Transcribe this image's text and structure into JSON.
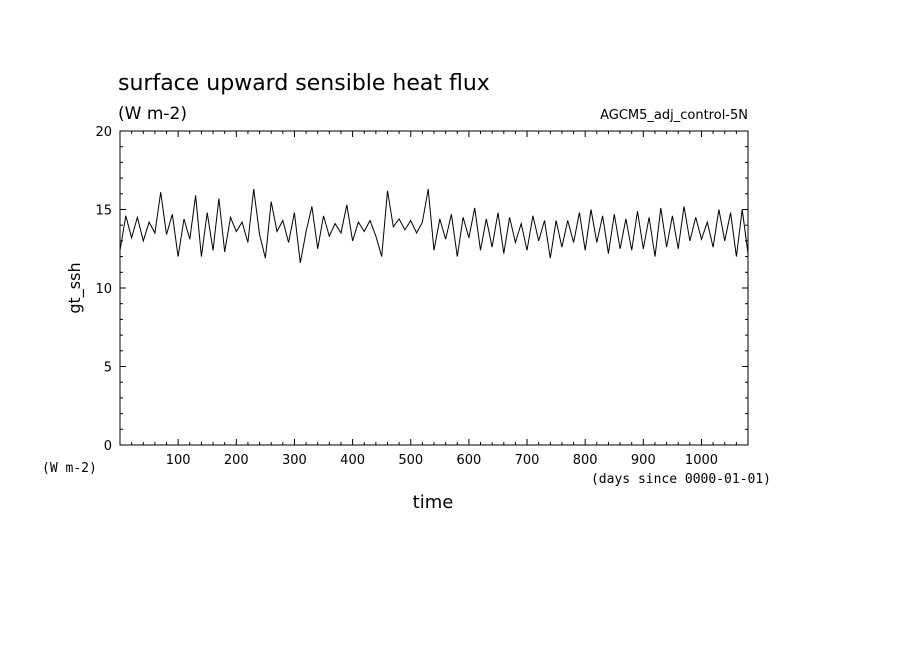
{
  "chart_data": {
    "type": "line",
    "title": "surface upward sensible heat flux",
    "units_label": "(W m-2)",
    "dataset_label": "AGCM5_adj_control-5N",
    "ylabel": "gt_ssh",
    "y_unit_note": "(W m-2)",
    "xlabel": "time",
    "x_unit_note": "(days since 0000-01-01)",
    "xlim": [
      0,
      1080
    ],
    "ylim": [
      0,
      20
    ],
    "x_ticks": [
      100,
      200,
      300,
      400,
      500,
      600,
      700,
      800,
      900,
      1000
    ],
    "y_ticks": [
      0,
      5,
      10,
      15,
      20
    ],
    "grid": false,
    "series": [
      {
        "color": "#000000",
        "x": [
          0,
          10,
          20,
          30,
          40,
          50,
          60,
          70,
          80,
          90,
          100,
          110,
          120,
          130,
          140,
          150,
          160,
          170,
          180,
          190,
          200,
          210,
          220,
          230,
          240,
          250,
          260,
          270,
          280,
          290,
          300,
          310,
          320,
          330,
          340,
          350,
          360,
          370,
          380,
          390,
          400,
          410,
          420,
          430,
          440,
          450,
          460,
          470,
          480,
          490,
          500,
          510,
          520,
          530,
          540,
          550,
          560,
          570,
          580,
          590,
          600,
          610,
          620,
          630,
          640,
          650,
          660,
          670,
          680,
          690,
          700,
          710,
          720,
          730,
          740,
          750,
          760,
          770,
          780,
          790,
          800,
          810,
          820,
          830,
          840,
          850,
          860,
          870,
          880,
          890,
          900,
          910,
          920,
          930,
          940,
          950,
          960,
          970,
          980,
          990,
          1000,
          1010,
          1020,
          1030,
          1040,
          1050,
          1060,
          1070,
          1080
        ],
        "y": [
          12.4,
          14.6,
          13.2,
          14.5,
          13.0,
          14.2,
          13.5,
          16.1,
          13.4,
          14.7,
          12.0,
          14.4,
          13.1,
          15.9,
          12.0,
          14.8,
          12.4,
          15.7,
          12.3,
          14.5,
          13.6,
          14.2,
          12.9,
          16.3,
          13.4,
          11.9,
          15.5,
          13.6,
          14.3,
          12.9,
          14.8,
          11.6,
          13.6,
          15.2,
          12.5,
          14.6,
          13.3,
          14.1,
          13.5,
          15.3,
          13.0,
          14.2,
          13.6,
          14.3,
          13.3,
          12.0,
          16.2,
          13.9,
          14.4,
          13.7,
          14.3,
          13.5,
          14.2,
          16.3,
          12.4,
          14.4,
          13.1,
          14.7,
          12.0,
          14.5,
          13.2,
          15.1,
          12.4,
          14.4,
          12.6,
          14.8,
          12.2,
          14.5,
          12.9,
          14.1,
          12.4,
          14.6,
          13.0,
          14.3,
          11.9,
          14.3,
          12.6,
          14.3,
          12.9,
          14.8,
          12.4,
          15.0,
          12.9,
          14.6,
          12.2,
          14.7,
          12.5,
          14.4,
          12.4,
          14.9,
          12.5,
          14.5,
          12.0,
          15.1,
          12.6,
          14.6,
          12.5,
          15.2,
          13.0,
          14.5,
          13.1,
          14.2,
          12.6,
          15.0,
          13.0,
          14.8,
          12.0,
          15.0,
          12.2
        ]
      }
    ]
  }
}
